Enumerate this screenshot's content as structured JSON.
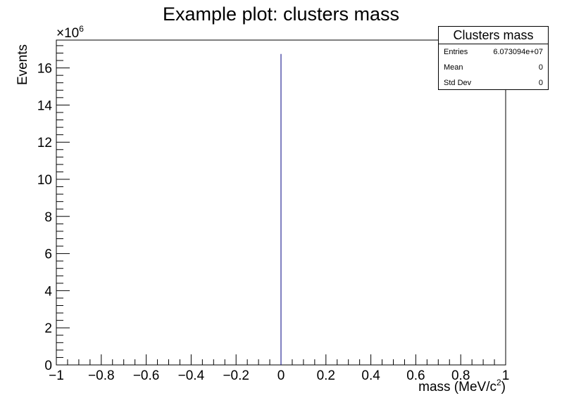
{
  "chart_data": {
    "type": "bar",
    "title": "Example plot: clusters mass",
    "xlabel": "mass (MeV/c",
    "xlabel_superscript": "2",
    "xlabel_suffix": ")",
    "ylabel": "Events",
    "y_multiplier_base": "×10",
    "y_multiplier_exponent": "6",
    "xlim": [
      -1,
      1
    ],
    "ylim": [
      0,
      17.5
    ],
    "x_ticks": [
      -1,
      -0.8,
      -0.6,
      -0.4,
      -0.2,
      0,
      0.2,
      0.4,
      0.6,
      0.8,
      1
    ],
    "x_tick_labels": [
      "−1",
      "−0.8",
      "−0.6",
      "−0.4",
      "−0.2",
      "0",
      "0.2",
      "0.4",
      "0.6",
      "0.8",
      "1"
    ],
    "y_ticks": [
      0,
      2,
      4,
      6,
      8,
      10,
      12,
      14,
      16
    ],
    "y_tick_labels": [
      "0",
      "2",
      "4",
      "6",
      "8",
      "10",
      "12",
      "14",
      "16"
    ],
    "bins": [
      {
        "x": 0.0,
        "value": 16.75
      }
    ],
    "line_color": "#000080",
    "grid": false,
    "legend_position": "top-right"
  },
  "stats": {
    "title": "Clusters mass",
    "rows": [
      {
        "label": "Entries",
        "value": "6.073094e+07"
      },
      {
        "label": "Mean",
        "value": "0"
      },
      {
        "label": "Std Dev",
        "value": "0"
      }
    ]
  }
}
